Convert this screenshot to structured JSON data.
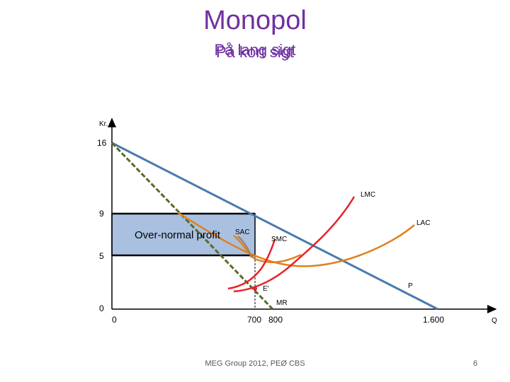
{
  "slide": {
    "title": "Monopol",
    "subtitle_overlap_a": "På lang sigt",
    "subtitle_overlap_b": "På kort sigt",
    "footer": "MEG Group 2012, PEØ CBS",
    "page_number": "6"
  },
  "diagram": {
    "y_axis_label": "Kr.",
    "x_axis_label": "Q",
    "y_ticks": [
      "16",
      "9",
      "5",
      "0"
    ],
    "x_ticks": [
      "0",
      "700",
      "800",
      "1.600"
    ],
    "area_label": "Over-normal profit",
    "curve_labels": {
      "lmc": "LMC",
      "lac": "LAC",
      "sac": "SAC",
      "smc": "SMC",
      "mr": "MR",
      "p": "P",
      "e": "E'"
    },
    "colors": {
      "demand": "#4a7ab0",
      "mr": "#5a6a2a",
      "lmc": "#e8202a",
      "smc": "#e8202a",
      "lac": "#e08020",
      "sac": "#a08070",
      "profit_fill": "#a9c0e0",
      "title": "#7030a0"
    }
  }
}
